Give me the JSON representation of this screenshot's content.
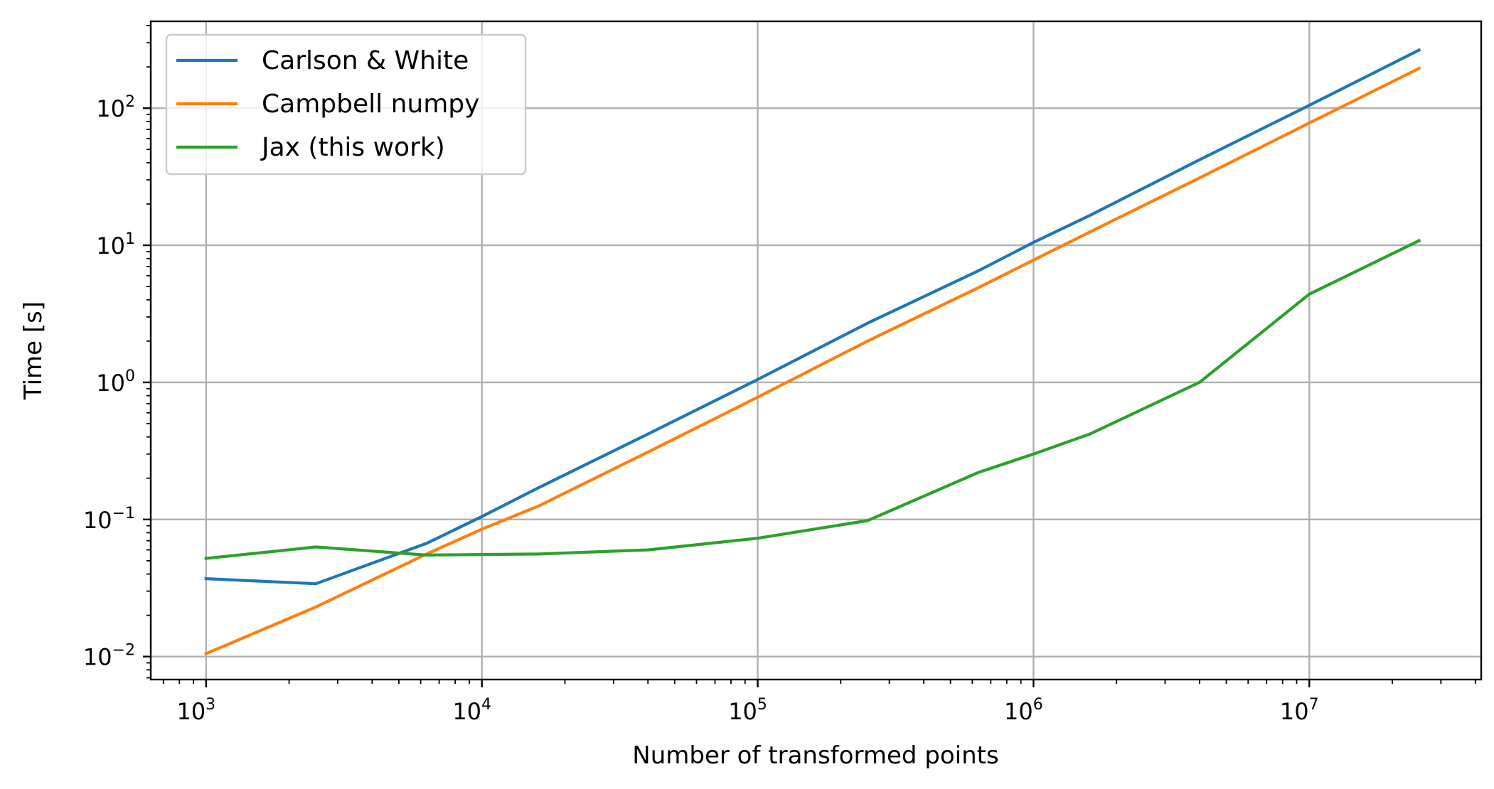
{
  "chart_data": {
    "type": "line",
    "xlabel": "Number of transformed points",
    "ylabel": "Time [s]",
    "xscale": "log",
    "yscale": "log",
    "xlim": [
      630,
      42000000
    ],
    "ylim": [
      0.0068,
      430
    ],
    "grid": true,
    "legend_position": "upper left",
    "x_ticks": [
      {
        "value": 1000,
        "base": "10",
        "exp": "3"
      },
      {
        "value": 10000,
        "base": "10",
        "exp": "4"
      },
      {
        "value": 100000,
        "base": "10",
        "exp": "5"
      },
      {
        "value": 1000000,
        "base": "10",
        "exp": "6"
      },
      {
        "value": 10000000,
        "base": "10",
        "exp": "7"
      }
    ],
    "y_ticks": [
      {
        "value": 0.01,
        "base": "10",
        "exp": "−2"
      },
      {
        "value": 0.1,
        "base": "10",
        "exp": "−1"
      },
      {
        "value": 1,
        "base": "10",
        "exp": "0"
      },
      {
        "value": 10,
        "base": "10",
        "exp": "1"
      },
      {
        "value": 100,
        "base": "10",
        "exp": "2"
      }
    ],
    "series": [
      {
        "name": "Carlson & White",
        "color": "#1f77b4",
        "x": [
          1000,
          2500,
          6300,
          10000,
          16000,
          40000,
          100000,
          250000,
          630000,
          1000000,
          1600000,
          4000000,
          10000000,
          25000000
        ],
        "y": [
          0.037,
          0.034,
          0.067,
          0.105,
          0.17,
          0.42,
          1.05,
          2.7,
          6.5,
          10.5,
          16.5,
          42,
          105,
          265
        ]
      },
      {
        "name": "Campbell numpy",
        "color": "#ff7f0e",
        "x": [
          1000,
          2500,
          6300,
          10000,
          16000,
          40000,
          100000,
          250000,
          630000,
          1000000,
          1600000,
          4000000,
          10000000,
          25000000
        ],
        "y": [
          0.0105,
          0.023,
          0.056,
          0.085,
          0.125,
          0.31,
          0.78,
          2.0,
          4.9,
          7.8,
          12.5,
          31,
          78,
          195
        ]
      },
      {
        "name": "Jax (this work)",
        "color": "#2ca02c",
        "x": [
          1000,
          2500,
          6300,
          10000,
          16000,
          40000,
          100000,
          250000,
          630000,
          1000000,
          1600000,
          4000000,
          10000000,
          25000000
        ],
        "y": [
          0.052,
          0.063,
          0.055,
          0.0555,
          0.056,
          0.06,
          0.073,
          0.098,
          0.22,
          0.3,
          0.42,
          1.0,
          4.4,
          10.8
        ]
      }
    ]
  }
}
